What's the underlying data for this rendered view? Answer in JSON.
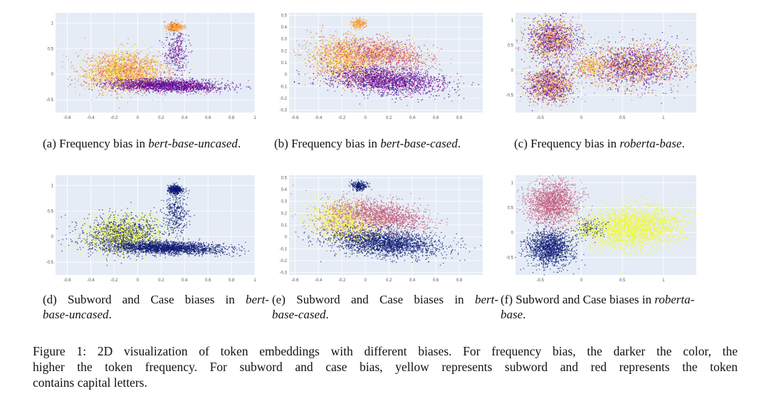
{
  "figure": {
    "caption_lines": [
      "Figure 1: 2D visualization of token embeddings with different biases. For frequency bias, the darker the color, the",
      "higher the token frequency.  For subword and case bias, yellow represents subword and red represents the token",
      "contains capital letters."
    ]
  },
  "captions": {
    "a": {
      "lead": "(a) Frequency bias in ",
      "italic": "bert-base-uncased",
      "tail": "."
    },
    "b": {
      "lead": "(b) Frequency bias in ",
      "italic": "bert-base-cased",
      "tail": "."
    },
    "c": {
      "lead": "(c) Frequency bias in ",
      "italic": "roberta-base",
      "tail": "."
    },
    "d": {
      "line1_lead": "(d) Subword and Case biases in ",
      "line1_italic": "bert-",
      "line2_italic": "base-uncased",
      "line2_tail": "."
    },
    "e": {
      "line1_lead": "(e) Subword and Case biases in ",
      "line1_italic": "bert-",
      "line2_italic": "base-cased",
      "line2_tail": "."
    },
    "f": {
      "line1_lead": "(f) Subword and Case biases in ",
      "line1_italic": "roberta-",
      "line2_italic": "base",
      "line2_tail": "."
    }
  },
  "chart_data": [
    {
      "id": "a",
      "type": "scatter",
      "title": "",
      "model": "bert-base-uncased",
      "color_scheme": "plasma-frequency",
      "xlim": [
        -0.7,
        1.0
      ],
      "ylim": [
        -0.75,
        1.2
      ],
      "xticks": [
        "-0.6",
        "-0.4",
        "-0.2",
        "0",
        "0.2",
        "0.4",
        "0.6",
        "0.8",
        "1"
      ],
      "xtick_values": [
        -0.6,
        -0.4,
        -0.2,
        0,
        0.2,
        0.4,
        0.6,
        0.8,
        1.0
      ],
      "yticks": [
        "1",
        "0.5",
        "0",
        "-0.5"
      ],
      "ytick_values": [
        1,
        0.5,
        0,
        -0.5
      ]
    },
    {
      "id": "b",
      "type": "scatter",
      "title": "",
      "model": "bert-base-cased",
      "color_scheme": "plasma-frequency",
      "xlim": [
        -0.65,
        1.0
      ],
      "ylim": [
        -0.32,
        0.52
      ],
      "xticks": [
        "-0.6",
        "-0.4",
        "-0.2",
        "0",
        "0.2",
        "0.4",
        "0.6",
        "0.8"
      ],
      "xtick_values": [
        -0.6,
        -0.4,
        -0.2,
        0,
        0.2,
        0.4,
        0.6,
        0.8
      ],
      "yticks": [
        "0.5",
        "0.4",
        "0.3",
        "0.2",
        "0.1",
        "0",
        "-0.1",
        "-0.2",
        "-0.3"
      ],
      "ytick_values": [
        0.5,
        0.4,
        0.3,
        0.2,
        0.1,
        0,
        -0.1,
        -0.2,
        -0.3
      ]
    },
    {
      "id": "c",
      "type": "scatter",
      "title": "",
      "model": "roberta-base",
      "color_scheme": "plasma-frequency",
      "xlim": [
        -0.8,
        1.4
      ],
      "ylim": [
        -0.85,
        1.15
      ],
      "xticks": [
        "-0.5",
        "0",
        "0.5",
        "1"
      ],
      "xtick_values": [
        -0.5,
        0,
        0.5,
        1
      ],
      "yticks": [
        "1",
        "0.5",
        "0",
        "-0.5"
      ],
      "ytick_values": [
        1,
        0.5,
        0,
        -0.5
      ]
    },
    {
      "id": "d",
      "type": "scatter",
      "title": "",
      "model": "bert-base-uncased",
      "color_scheme": "subword-case",
      "xlim": [
        -0.7,
        1.0
      ],
      "ylim": [
        -0.75,
        1.2
      ],
      "xticks": [
        "-0.6",
        "-0.4",
        "-0.2",
        "0",
        "0.2",
        "0.4",
        "0.6",
        "0.8",
        "1"
      ],
      "xtick_values": [
        -0.6,
        -0.4,
        -0.2,
        0,
        0.2,
        0.4,
        0.6,
        0.8,
        1.0
      ],
      "yticks": [
        "1",
        "0.5",
        "0",
        "-0.5"
      ],
      "ytick_values": [
        1,
        0.5,
        0,
        -0.5
      ]
    },
    {
      "id": "e",
      "type": "scatter",
      "title": "",
      "model": "bert-base-cased",
      "color_scheme": "subword-case",
      "xlim": [
        -0.65,
        1.0
      ],
      "ylim": [
        -0.32,
        0.52
      ],
      "xticks": [
        "-0.6",
        "-0.4",
        "-0.2",
        "0",
        "0.2",
        "0.4",
        "0.6",
        "0.8"
      ],
      "xtick_values": [
        -0.6,
        -0.4,
        -0.2,
        0,
        0.2,
        0.4,
        0.6,
        0.8
      ],
      "yticks": [
        "0.5",
        "0.4",
        "0.3",
        "0.2",
        "0.1",
        "0",
        "-0.1",
        "-0.2",
        "-0.3"
      ],
      "ytick_values": [
        0.5,
        0.4,
        0.3,
        0.2,
        0.1,
        0,
        -0.1,
        -0.2,
        -0.3
      ]
    },
    {
      "id": "f",
      "type": "scatter",
      "title": "",
      "model": "roberta-base",
      "color_scheme": "subword-case",
      "xlim": [
        -0.8,
        1.4
      ],
      "ylim": [
        -0.85,
        1.15
      ],
      "xticks": [
        "-0.5",
        "0",
        "0.5",
        "1"
      ],
      "xtick_values": [
        -0.5,
        0,
        0.5,
        1
      ],
      "yticks": [
        "1",
        "0.5",
        "0",
        "-0.5"
      ],
      "ytick_values": [
        1,
        0.5,
        0,
        -0.5
      ]
    }
  ],
  "colors": {
    "plot_bg": "#e5ecf6",
    "grid": "#ffffff",
    "subword_yellow": "#f0f921",
    "capital_red": "#c2577a",
    "other_navy": "#0d1a73",
    "plasma": [
      "#0d0887",
      "#46039f",
      "#7201a8",
      "#9c179e",
      "#bd3786",
      "#d8576b",
      "#ed7953",
      "#fb9f3a",
      "#fdca26",
      "#f0f921"
    ]
  }
}
